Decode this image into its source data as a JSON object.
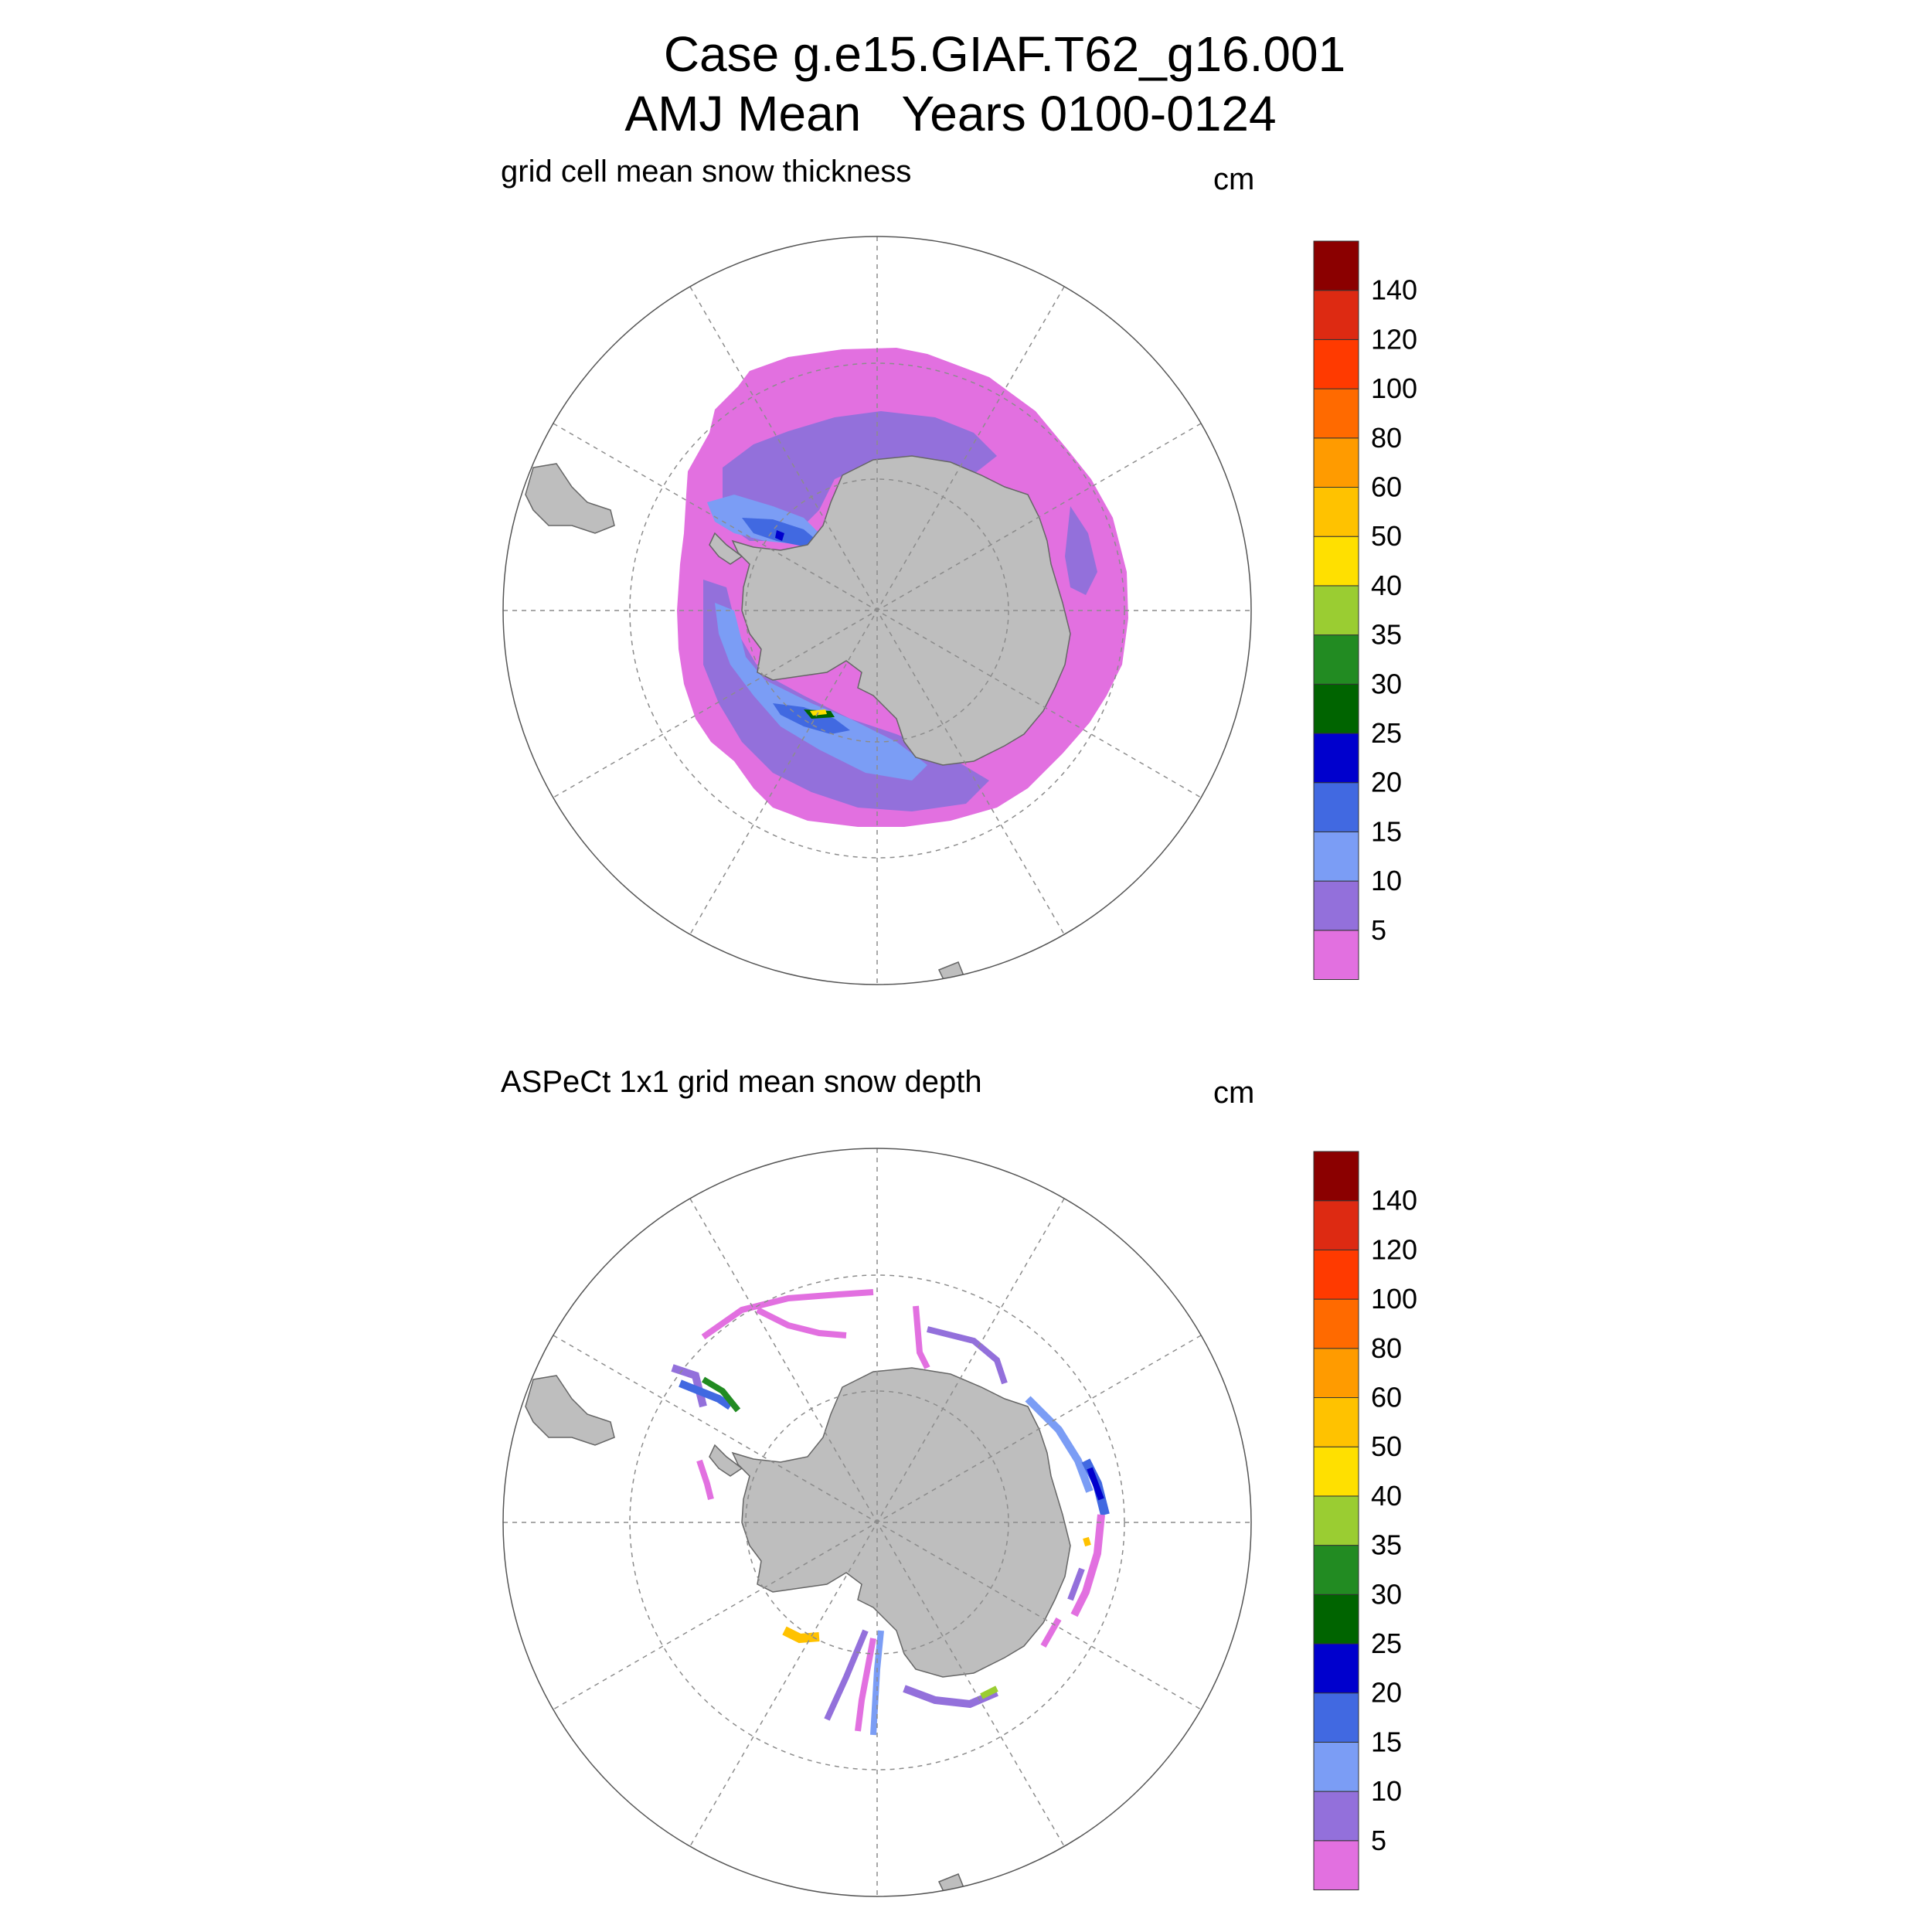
{
  "figure": {
    "title_line1": "Case g.e15.GIAF.T62_g16.001",
    "title_line2": "AMJ Mean   Years 0100-0124"
  },
  "colors": {
    "land": "#bebebe",
    "grid": "#8c8c8c",
    "background": "#ffffff"
  },
  "colorbar": {
    "unit": "cm",
    "levels": [
      "5",
      "10",
      "15",
      "20",
      "25",
      "30",
      "35",
      "40",
      "50",
      "60",
      "80",
      "100",
      "120",
      "140"
    ],
    "colors": [
      "#e270e0",
      "#9370db",
      "#7b9df5",
      "#4169e1",
      "#0000cd",
      "#006400",
      "#228b22",
      "#9acd32",
      "#ffe000",
      "#ffc200",
      "#ff9b00",
      "#ff6a00",
      "#ff3a00",
      "#dd2a12",
      "#8b0000"
    ]
  },
  "panels": [
    {
      "id": "model",
      "title": "grid cell mean snow thickness",
      "unit": "cm",
      "projection": "south-polar-stereographic",
      "field_type": "continuous"
    },
    {
      "id": "obs",
      "title": "ASPeCt 1x1 grid mean snow depth",
      "unit": "cm",
      "projection": "south-polar-stereographic",
      "field_type": "sparse"
    }
  ]
}
